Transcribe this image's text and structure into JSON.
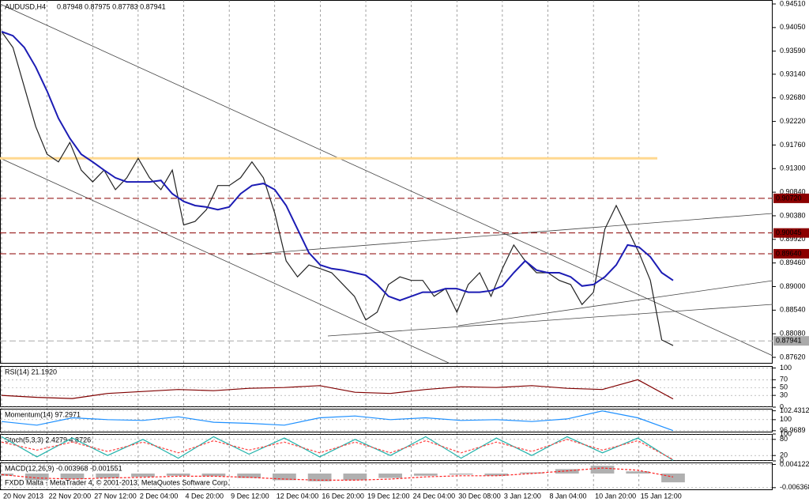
{
  "header": {
    "title": "AUDUSD,H4",
    "ohlc": "0.87948 0.87975 0.87783 0.87941"
  },
  "footer": "FXDD Malta - MetaTrader 4, © 2001-2013, MetaQuotes Software Corp.",
  "chart_data": [
    {
      "type": "line",
      "categories": [
        "20 Nov 2013",
        null,
        null,
        null,
        "22 Nov 20:00",
        null,
        null,
        null,
        "27 Nov 12:00",
        null,
        null,
        null,
        "2 Dec 04:00",
        null,
        null,
        null,
        "4 Dec 20:00",
        null,
        null,
        null,
        "9 Dec 12:00",
        null,
        null,
        null,
        "12 Dec 04:00",
        null,
        null,
        null,
        "16 Dec 20:00",
        null,
        null,
        null,
        "19 Dec 12:00",
        null,
        null,
        null,
        "24 Dec 04:00",
        null,
        null,
        null,
        "30 Dec 08:00",
        null,
        null,
        null,
        "3 Jan 12:00",
        null,
        null,
        null,
        "8 Jan 04:00",
        null,
        null,
        null,
        "10 Jan 20:00",
        null,
        null,
        null,
        "15 Jan 12:00",
        null,
        null,
        null
      ],
      "series": [
        {
          "color": "#222222",
          "values": [
            0.9397,
            0.9366,
            0.9289,
            0.9212,
            0.9158,
            0.9143,
            0.9181,
            0.9127,
            0.9104,
            0.9127,
            0.9089,
            0.9112,
            0.915,
            0.9112,
            0.9089,
            0.9127,
            0.902,
            0.9027,
            0.905,
            0.9097,
            0.9097,
            0.9112,
            0.9143,
            0.9112,
            0.9043,
            0.895,
            0.8919,
            0.8942,
            0.8935,
            0.8927,
            0.8904,
            0.8881,
            0.8835,
            0.885,
            0.8904,
            0.8919,
            0.8912,
            0.8912,
            0.8881,
            0.8896,
            0.885,
            0.8904,
            0.8927,
            0.8881,
            0.8935,
            0.8981,
            0.895,
            0.8927,
            0.8927,
            0.8912,
            0.8904,
            0.8865,
            0.8889,
            0.9012,
            0.9058,
            0.9012,
            0.8966,
            0.8912,
            0.8796,
            0.8785
          ]
        },
        {
          "color": "#1c1cb4",
          "values": [
            0.9397,
            0.9389,
            0.9366,
            0.9328,
            0.9281,
            0.9228,
            0.9189,
            0.9158,
            0.9143,
            0.9127,
            0.9112,
            0.9104,
            0.9104,
            0.9104,
            0.9107,
            0.9081,
            0.9066,
            0.9058,
            0.9055,
            0.905,
            0.9055,
            0.9081,
            0.9097,
            0.9101,
            0.9089,
            0.9058,
            0.9012,
            0.8966,
            0.8942,
            0.8935,
            0.8932,
            0.8927,
            0.8922,
            0.8904,
            0.8881,
            0.8873,
            0.8881,
            0.8889,
            0.8889,
            0.8896,
            0.8896,
            0.8889,
            0.8889,
            0.8892,
            0.8901,
            0.8927,
            0.895,
            0.8932,
            0.8927,
            0.8927,
            0.8919,
            0.8901,
            0.8904,
            0.8919,
            0.8942,
            0.8981,
            0.8977,
            0.8958,
            0.8927,
            0.8912
          ]
        }
      ],
      "ylim": [
        0.87497,
        0.94587
      ],
      "yticks": [
        {
          "value": 0.9451,
          "label": "0.94510"
        },
        {
          "value": 0.9405,
          "label": "0.94050"
        },
        {
          "value": 0.9359,
          "label": "0.93590"
        },
        {
          "value": 0.9314,
          "label": "0.93140"
        },
        {
          "value": 0.9268,
          "label": "0.92680"
        },
        {
          "value": 0.9222,
          "label": "0.92220"
        },
        {
          "value": 0.9176,
          "label": "0.91760"
        },
        {
          "value": 0.913,
          "label": "0.91300"
        },
        {
          "value": 0.9084,
          "label": "0.90840"
        },
        {
          "value": 0.9038,
          "label": "0.90380"
        },
        {
          "value": 0.8992,
          "label": "0.89920"
        },
        {
          "value": 0.8946,
          "label": "0.89460"
        },
        {
          "value": 0.89,
          "label": "0.89000"
        },
        {
          "value": 0.8854,
          "label": "0.88540"
        },
        {
          "value": 0.8808,
          "label": "0.88080"
        },
        {
          "value": 0.8762,
          "label": "0.87620"
        }
      ],
      "levels": [
        {
          "value": 0.9072,
          "label": "0.90720",
          "color": "#8b0000"
        },
        {
          "value": 0.90045,
          "label": "0.90045",
          "color": "#8b0000"
        },
        {
          "value": 0.8964,
          "label": "0.89640",
          "color": "#8b0000"
        },
        {
          "value": 0.87941,
          "label": "0.87941",
          "color": "#aaaaaa"
        }
      ],
      "highlight": {
        "value": 0.915,
        "color": "#ffd890"
      }
    },
    {
      "type": "line",
      "title": "RSI(14) 21.1920",
      "series": [
        {
          "color": "#800000",
          "values": [
            30,
            25,
            22,
            35,
            40,
            45,
            42,
            48,
            50,
            55,
            38,
            35,
            45,
            52,
            50,
            55,
            48,
            45,
            70,
            21
          ]
        }
      ],
      "ylim": [
        0,
        105
      ],
      "yticks": [
        0,
        30,
        50,
        70,
        100
      ]
    },
    {
      "type": "line",
      "title": "Momentum(14) 97.2971",
      "series": [
        {
          "color": "#1e90ff",
          "values": [
            99.5,
            98.5,
            100.5,
            100,
            99.8,
            100.8,
            99.3,
            99,
            98.5,
            100.5,
            101,
            100,
            100.5,
            99.8,
            100,
            99.5,
            100.2,
            102.4,
            100.5,
            97
          ]
        }
      ],
      "ylim": [
        96.5,
        103
      ],
      "yticks": [
        96.9689,
        100,
        102.4312
      ]
    },
    {
      "type": "line",
      "title": "Stoch(5,3,3) 2.4279 4.8726",
      "series": [
        {
          "color": "#20b2aa",
          "values": [
            90,
            15,
            85,
            20,
            80,
            10,
            90,
            25,
            85,
            15,
            80,
            20,
            90,
            10,
            85,
            20,
            90,
            30,
            85,
            2
          ]
        },
        {
          "color": "#ff4040",
          "dashed": true,
          "values": [
            70,
            40,
            70,
            35,
            70,
            30,
            75,
            40,
            70,
            30,
            70,
            30,
            75,
            30,
            70,
            35,
            80,
            40,
            75,
            5
          ]
        }
      ],
      "ylim": [
        0,
        100
      ],
      "yticks": [
        0,
        20,
        80,
        100
      ]
    },
    {
      "type": "bar",
      "title": "MACD(12,26,9) -0.003968 -0.001551",
      "series": [
        {
          "color": "#b0b0b0",
          "values": [
            -0.001,
            -0.003,
            -0.0025,
            -0.002,
            -0.0015,
            -0.001,
            -0.0012,
            -0.002,
            -0.003,
            -0.0035,
            -0.003,
            -0.002,
            -0.001,
            -0.0005,
            -0.001,
            0.0005,
            0.002,
            0.0035,
            0.001,
            -0.00397
          ]
        },
        {
          "color": "#ff2020",
          "dashed": true,
          "line": true,
          "values": [
            -0.0005,
            -0.002,
            -0.0025,
            -0.002,
            -0.0017,
            -0.0012,
            -0.0012,
            -0.0017,
            -0.0025,
            -0.003,
            -0.003,
            -0.0025,
            -0.0015,
            -0.001,
            -0.001,
            0,
            0.0012,
            0.0025,
            0.0015,
            -0.00155
          ]
        }
      ],
      "ylim": [
        -0.0075,
        0.005
      ],
      "yticks": [
        -0.006368,
        0.004122
      ]
    }
  ]
}
